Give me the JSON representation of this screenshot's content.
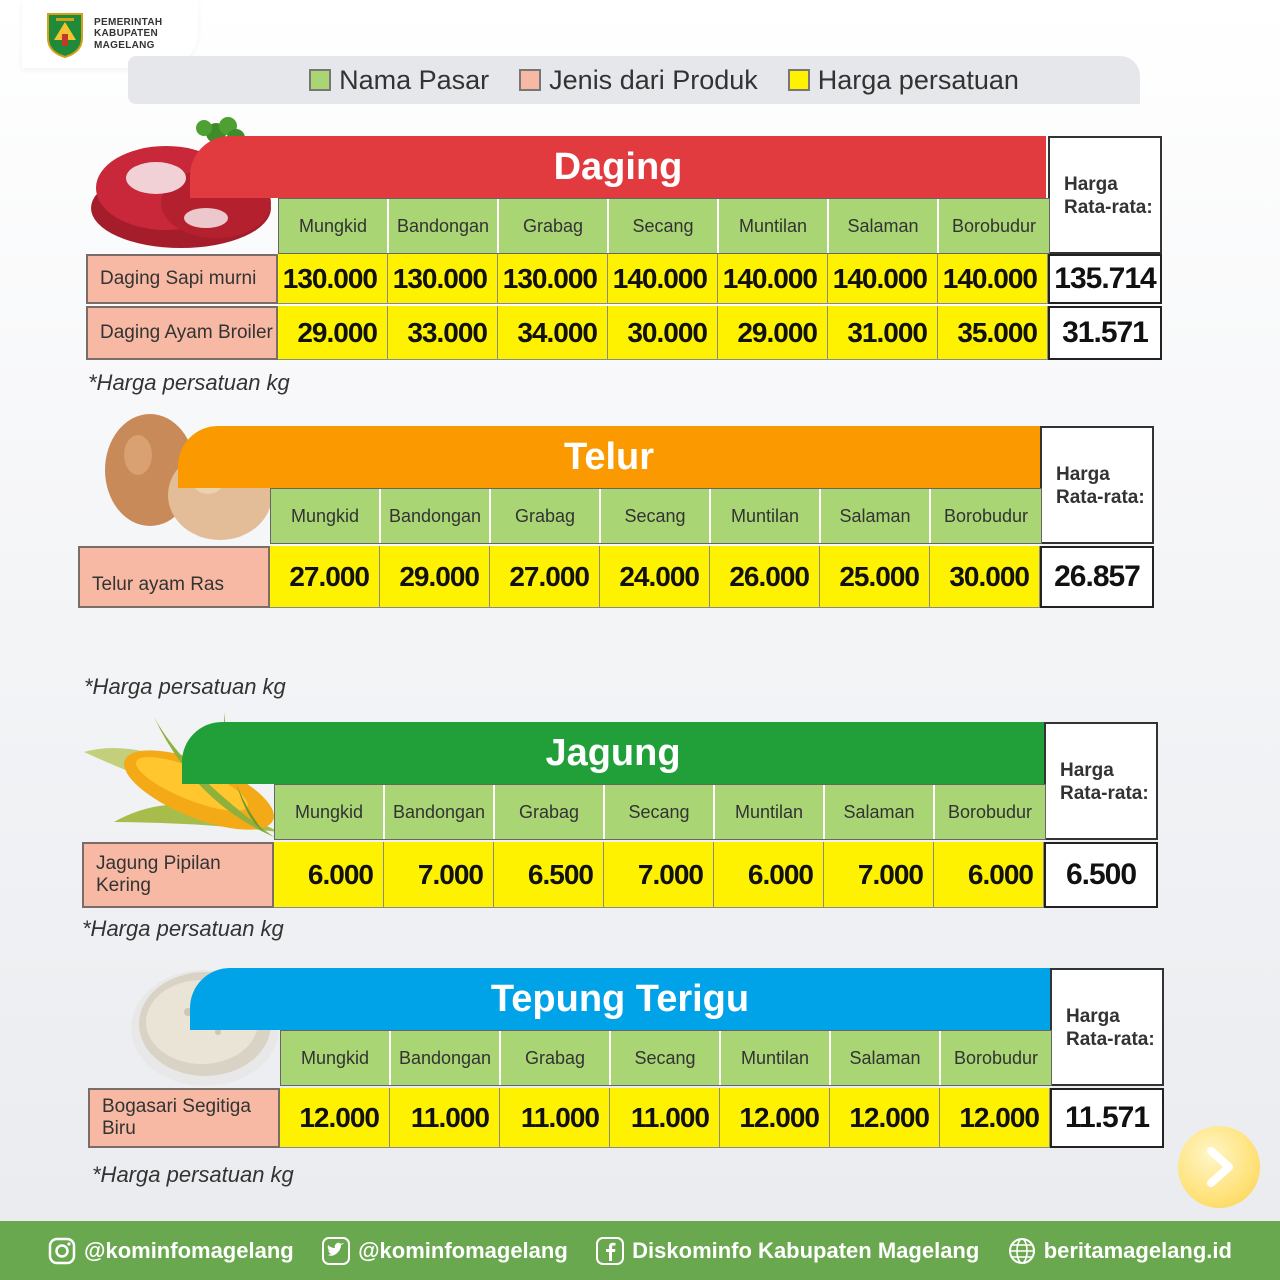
{
  "header": {
    "org_line1": "PEMERINTAH",
    "org_line2": "KABUPATEN",
    "org_line3": "MAGELANG"
  },
  "legend": {
    "market": "Nama Pasar",
    "product": "Jenis dari Produk",
    "price": "Harga persatuan"
  },
  "colors": {
    "market_green": "#a9d574",
    "product_pink": "#f7b9a3",
    "price_yellow": "#fff200",
    "daging_red": "#e23b3f",
    "telur_orange": "#fb9a00",
    "jagung_green": "#21a03a",
    "tepung_blue": "#00a2e8",
    "footer_green": "#6aa84f"
  },
  "markets": [
    "Mungkid",
    "Bandongan",
    "Grabag",
    "Secang",
    "Muntilan",
    "Salaman",
    "Borobudur"
  ],
  "avg_header_line1": "Harga",
  "avg_header_line2": "Rata-rata:",
  "sections": {
    "daging": {
      "title": "Daging",
      "rows": [
        {
          "label": "Daging Sapi murni",
          "prices": [
            "130.000",
            "130.000",
            "130.000",
            "140.000",
            "140.000",
            "140.000",
            "140.000"
          ],
          "avg": "135.714"
        },
        {
          "label": "Daging Ayam Broiler",
          "prices": [
            "29.000",
            "33.000",
            "34.000",
            "30.000",
            "29.000",
            "31.000",
            "35.000"
          ],
          "avg": "31.571"
        }
      ],
      "note": "*Harga persatuan kg"
    },
    "telur": {
      "title": "Telur",
      "rows": [
        {
          "label": "Telur ayam Ras",
          "prices": [
            "27.000",
            "29.000",
            "27.000",
            "24.000",
            "26.000",
            "25.000",
            "30.000"
          ],
          "avg": "26.857"
        }
      ],
      "note": "*Harga persatuan kg"
    },
    "jagung": {
      "title": "Jagung",
      "rows": [
        {
          "label": "Jagung Pipilan Kering",
          "prices": [
            "6.000",
            "7.000",
            "6.500",
            "7.000",
            "6.000",
            "7.000",
            "6.000"
          ],
          "avg": "6.500"
        }
      ],
      "note": "*Harga persatuan kg"
    },
    "tepung": {
      "title": "Tepung Terigu",
      "rows": [
        {
          "label": "Bogasari Segitiga Biru",
          "prices": [
            "12.000",
            "11.000",
            "11.000",
            "11.000",
            "12.000",
            "12.000",
            "12.000"
          ],
          "avg": "11.571"
        }
      ],
      "note": "*Harga persatuan kg"
    }
  },
  "footer": {
    "instagram": "@kominfomagelang",
    "twitter": "@kominfomagelang",
    "facebook": "Diskominfo Kabupaten Magelang",
    "website": "beritamagelang.id"
  },
  "icons": [
    "logo-shield-icon",
    "meat-icon",
    "egg-icon",
    "corn-icon",
    "flour-icon",
    "next-arrow-icon",
    "instagram-icon",
    "twitter-icon",
    "facebook-icon",
    "globe-icon"
  ]
}
